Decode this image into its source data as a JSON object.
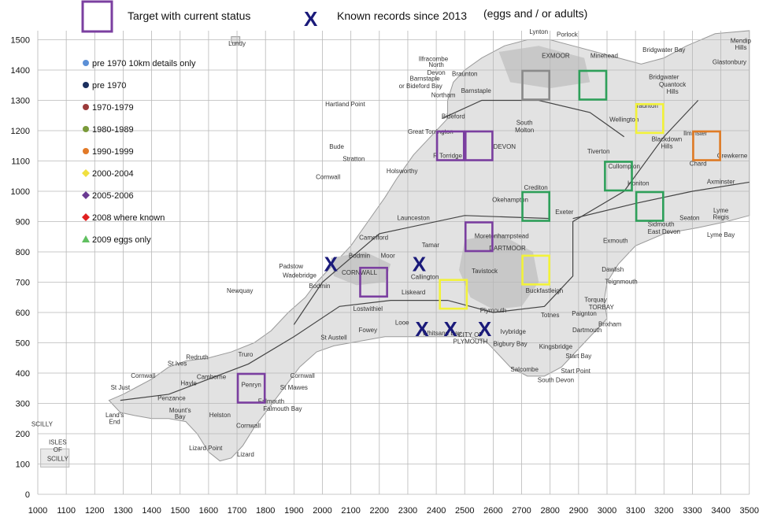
{
  "header": {
    "target_legend": "Target with current status",
    "records_marker": "X",
    "records_legend": "Known records since 2013",
    "records_note": "(eggs and / or adults)"
  },
  "legend": {
    "items": [
      {
        "label": "pre 1970 10km details only",
        "shape": "circle",
        "color": "#5b8fd6"
      },
      {
        "label": "pre 1970",
        "shape": "circle",
        "color": "#1b2f5e"
      },
      {
        "label": "1970-1979",
        "shape": "circle",
        "color": "#9b3a3a"
      },
      {
        "label": "1980-1989",
        "shape": "circle",
        "color": "#7a9a3a"
      },
      {
        "label": "1990-1999",
        "shape": "circle",
        "color": "#e27a28"
      },
      {
        "label": "2000-2004",
        "shape": "diamond",
        "color": "#f0e040"
      },
      {
        "label": "2005-2006",
        "shape": "diamond",
        "color": "#6a3a92"
      },
      {
        "label": "2008 where known",
        "shape": "diamond",
        "color": "#e02020"
      },
      {
        "label": "2009 eggs only",
        "shape": "triangle",
        "color": "#60c060"
      }
    ]
  },
  "axes": {
    "x_ticks": [
      "1000",
      "1100",
      "1200",
      "1300",
      "1400",
      "1500",
      "1600",
      "1700",
      "1800",
      "1900",
      "2000",
      "2100",
      "2200",
      "2300",
      "2400",
      "2500",
      "2600",
      "2700",
      "2800",
      "2900",
      "3000",
      "3100",
      "3200",
      "3300",
      "3400",
      "3500"
    ],
    "y_ticks": [
      "0",
      "100",
      "200",
      "300",
      "400",
      "500",
      "600",
      "700",
      "800",
      "900",
      "1000",
      "1100",
      "1200",
      "1300",
      "1400",
      "1500"
    ]
  },
  "map_labels": [
    {
      "text": "Lundy",
      "x": 1700,
      "y": 1480
    },
    {
      "text": "Ilfracombe",
      "x": 2390,
      "y": 1430
    },
    {
      "text": "North",
      "x": 2400,
      "y": 1410
    },
    {
      "text": "Devon",
      "x": 2400,
      "y": 1385
    },
    {
      "text": "Barnstaple",
      "x": 2360,
      "y": 1365
    },
    {
      "text": "or Bideford Bay",
      "x": 2345,
      "y": 1340
    },
    {
      "text": "Hartland Point",
      "x": 2080,
      "y": 1280
    },
    {
      "text": "Braunton",
      "x": 2500,
      "y": 1380
    },
    {
      "text": "Barnstaple",
      "x": 2540,
      "y": 1325
    },
    {
      "text": "Northam",
      "x": 2425,
      "y": 1310
    },
    {
      "text": "Bideford",
      "x": 2460,
      "y": 1240
    },
    {
      "text": "Great Torrington",
      "x": 2380,
      "y": 1190
    },
    {
      "text": "South",
      "x": 2710,
      "y": 1220
    },
    {
      "text": "Molton",
      "x": 2710,
      "y": 1195
    },
    {
      "text": "Lynton",
      "x": 2760,
      "y": 1520
    },
    {
      "text": "Porlock",
      "x": 2860,
      "y": 1510
    },
    {
      "text": "EXMOOR",
      "x": 2820,
      "y": 1440
    },
    {
      "text": "Minehead",
      "x": 2990,
      "y": 1440
    },
    {
      "text": "Bridgwater Bay",
      "x": 3200,
      "y": 1460
    },
    {
      "text": "Bridgwater",
      "x": 3200,
      "y": 1370
    },
    {
      "text": "Quantock",
      "x": 3230,
      "y": 1345
    },
    {
      "text": "Hills",
      "x": 3230,
      "y": 1322
    },
    {
      "text": "Mendip",
      "x": 3470,
      "y": 1490
    },
    {
      "text": "Hills",
      "x": 3470,
      "y": 1468
    },
    {
      "text": "Glastonbury",
      "x": 3430,
      "y": 1420
    },
    {
      "text": "Taunton",
      "x": 3140,
      "y": 1275
    },
    {
      "text": "Wellington",
      "x": 3060,
      "y": 1230
    },
    {
      "text": "Blackdown",
      "x": 3210,
      "y": 1165
    },
    {
      "text": "Hills",
      "x": 3210,
      "y": 1142
    },
    {
      "text": "Ilminster",
      "x": 3310,
      "y": 1185
    },
    {
      "text": "Crewkerne",
      "x": 3440,
      "y": 1110
    },
    {
      "text": "Chard",
      "x": 3320,
      "y": 1085
    },
    {
      "text": "Axminster",
      "x": 3400,
      "y": 1025
    },
    {
      "text": "Tiverton",
      "x": 2970,
      "y": 1125
    },
    {
      "text": "Cullompton",
      "x": 3060,
      "y": 1075
    },
    {
      "text": "Honiton",
      "x": 3110,
      "y": 1020
    },
    {
      "text": "Crediton",
      "x": 2750,
      "y": 1005
    },
    {
      "text": "DEVON",
      "x": 2640,
      "y": 1140
    },
    {
      "text": "R Torridge",
      "x": 2440,
      "y": 1110
    },
    {
      "text": "Bude",
      "x": 2050,
      "y": 1140
    },
    {
      "text": "Stratton",
      "x": 2110,
      "y": 1100
    },
    {
      "text": "Holsworthy",
      "x": 2280,
      "y": 1060
    },
    {
      "text": "Cornwall",
      "x": 2020,
      "y": 1040
    },
    {
      "text": "Okehampton",
      "x": 2660,
      "y": 965
    },
    {
      "text": "Exeter",
      "x": 2850,
      "y": 925
    },
    {
      "text": "Sidmouth",
      "x": 3190,
      "y": 885
    },
    {
      "text": "Seaton",
      "x": 3290,
      "y": 905
    },
    {
      "text": "Lyme",
      "x": 3400,
      "y": 930
    },
    {
      "text": "Regis",
      "x": 3400,
      "y": 908
    },
    {
      "text": "Lyme Bay",
      "x": 3400,
      "y": 850
    },
    {
      "text": "East Devon",
      "x": 3200,
      "y": 860
    },
    {
      "text": "Exmouth",
      "x": 3030,
      "y": 830
    },
    {
      "text": "Launceston",
      "x": 2320,
      "y": 905
    },
    {
      "text": "Camelford",
      "x": 2180,
      "y": 840
    },
    {
      "text": "Bodmin",
      "x": 2130,
      "y": 780
    },
    {
      "text": "Moor",
      "x": 2230,
      "y": 780
    },
    {
      "text": "Tamar",
      "x": 2380,
      "y": 815
    },
    {
      "text": "Moretonhampstead",
      "x": 2630,
      "y": 845
    },
    {
      "text": "DARTMOOR",
      "x": 2650,
      "y": 805
    },
    {
      "text": "Padstow",
      "x": 1890,
      "y": 745
    },
    {
      "text": "Wadebridge",
      "x": 1920,
      "y": 715
    },
    {
      "text": "CORNWALL",
      "x": 2130,
      "y": 725
    },
    {
      "text": "Tavistock",
      "x": 2570,
      "y": 730
    },
    {
      "text": "Dawlish",
      "x": 3020,
      "y": 735
    },
    {
      "text": "Teignmouth",
      "x": 3050,
      "y": 695
    },
    {
      "text": "Newquay",
      "x": 1710,
      "y": 665
    },
    {
      "text": "Bodmin",
      "x": 1990,
      "y": 680
    },
    {
      "text": "Liskeard",
      "x": 2320,
      "y": 660
    },
    {
      "text": "Callington",
      "x": 2360,
      "y": 710
    },
    {
      "text": "Buckfastleigh",
      "x": 2780,
      "y": 665
    },
    {
      "text": "Torquay",
      "x": 2960,
      "y": 635
    },
    {
      "text": "TORBAY",
      "x": 2980,
      "y": 610
    },
    {
      "text": "Paignton",
      "x": 2920,
      "y": 590
    },
    {
      "text": "Lostwithiel",
      "x": 2160,
      "y": 605
    },
    {
      "text": "Plymouth",
      "x": 2600,
      "y": 600
    },
    {
      "text": "Totnes",
      "x": 2800,
      "y": 585
    },
    {
      "text": "Brixham",
      "x": 3010,
      "y": 555
    },
    {
      "text": "Looe",
      "x": 2280,
      "y": 560
    },
    {
      "text": "Fowey",
      "x": 2160,
      "y": 535
    },
    {
      "text": "St Austell",
      "x": 2040,
      "y": 510
    },
    {
      "text": "CITY OF",
      "x": 2520,
      "y": 520
    },
    {
      "text": "PLYMOUTH",
      "x": 2520,
      "y": 497
    },
    {
      "text": "Ivybridge",
      "x": 2670,
      "y": 530
    },
    {
      "text": "Dartmouth",
      "x": 2930,
      "y": 535
    },
    {
      "text": "Whitsand Bay",
      "x": 2420,
      "y": 525
    },
    {
      "text": "Bigbury Bay",
      "x": 2660,
      "y": 490
    },
    {
      "text": "Kingsbridge",
      "x": 2820,
      "y": 480
    },
    {
      "text": "Start Bay",
      "x": 2900,
      "y": 450
    },
    {
      "text": "Start Point",
      "x": 2890,
      "y": 400
    },
    {
      "text": "Salcombe",
      "x": 2710,
      "y": 405
    },
    {
      "text": "South Devon",
      "x": 2820,
      "y": 370
    },
    {
      "text": "Redruth",
      "x": 1560,
      "y": 445
    },
    {
      "text": "Truro",
      "x": 1730,
      "y": 455
    },
    {
      "text": "St Ives",
      "x": 1490,
      "y": 425
    },
    {
      "text": "Camborne",
      "x": 1610,
      "y": 380
    },
    {
      "text": "Hayle",
      "x": 1530,
      "y": 360
    },
    {
      "text": "Penryn",
      "x": 1750,
      "y": 355
    },
    {
      "text": "St Mawes",
      "x": 1900,
      "y": 345
    },
    {
      "text": "Cornwall",
      "x": 1930,
      "y": 385
    },
    {
      "text": "Cornwall",
      "x": 1370,
      "y": 385
    },
    {
      "text": "St Just",
      "x": 1290,
      "y": 345
    },
    {
      "text": "Penzance",
      "x": 1470,
      "y": 310
    },
    {
      "text": "Mount's",
      "x": 1500,
      "y": 270
    },
    {
      "text": "Bay",
      "x": 1500,
      "y": 250
    },
    {
      "text": "Falmouth",
      "x": 1820,
      "y": 300
    },
    {
      "text": "Falmouth Bay",
      "x": 1860,
      "y": 275
    },
    {
      "text": "Helston",
      "x": 1640,
      "y": 255
    },
    {
      "text": "Cornwall",
      "x": 1740,
      "y": 220
    },
    {
      "text": "Land's",
      "x": 1270,
      "y": 255
    },
    {
      "text": "End",
      "x": 1270,
      "y": 232
    },
    {
      "text": "Lizard Point",
      "x": 1590,
      "y": 145
    },
    {
      "text": "Lizard",
      "x": 1730,
      "y": 125
    },
    {
      "text": "SCILLY",
      "x": 1015,
      "y": 225
    },
    {
      "text": "ISLES",
      "x": 1070,
      "y": 165
    },
    {
      "text": "OF",
      "x": 1070,
      "y": 140
    },
    {
      "text": "SCILLY",
      "x": 1070,
      "y": 110
    }
  ],
  "targets": [
    {
      "x": 2130,
      "y": 650,
      "status": "purple"
    },
    {
      "x": 1700,
      "y": 300,
      "status": "purple"
    },
    {
      "x": 2400,
      "y": 1100,
      "status": "purple"
    },
    {
      "x": 2500,
      "y": 1100,
      "status": "purple"
    },
    {
      "x": 2500,
      "y": 800,
      "status": "purple"
    },
    {
      "x": 2410,
      "y": 610,
      "status": "yellow"
    },
    {
      "x": 2700,
      "y": 690,
      "status": "yellow"
    },
    {
      "x": 3100,
      "y": 1190,
      "status": "yellow"
    },
    {
      "x": 2700,
      "y": 1300,
      "status": "gray"
    },
    {
      "x": 2900,
      "y": 1300,
      "status": "green"
    },
    {
      "x": 2700,
      "y": 900,
      "status": "green"
    },
    {
      "x": 2990,
      "y": 1000,
      "status": "green"
    },
    {
      "x": 3100,
      "y": 900,
      "status": "green"
    },
    {
      "x": 3300,
      "y": 1100,
      "status": "orange"
    }
  ],
  "records_x": [
    {
      "x": 2030,
      "y": 760
    },
    {
      "x": 2340,
      "y": 760
    },
    {
      "x": 2350,
      "y": 545
    },
    {
      "x": 2450,
      "y": 545
    },
    {
      "x": 2570,
      "y": 545
    }
  ],
  "colors": {
    "land": "#e2e2e2",
    "upland": "#c8c8c8",
    "grid": "#b8b8b8",
    "marker_blue": "#1a1a7a",
    "purple": "#7b3fa0",
    "yellow": "#f2f23a",
    "gray": "#8a8a8a",
    "green": "#2ea05a",
    "orange": "#e07b25"
  }
}
